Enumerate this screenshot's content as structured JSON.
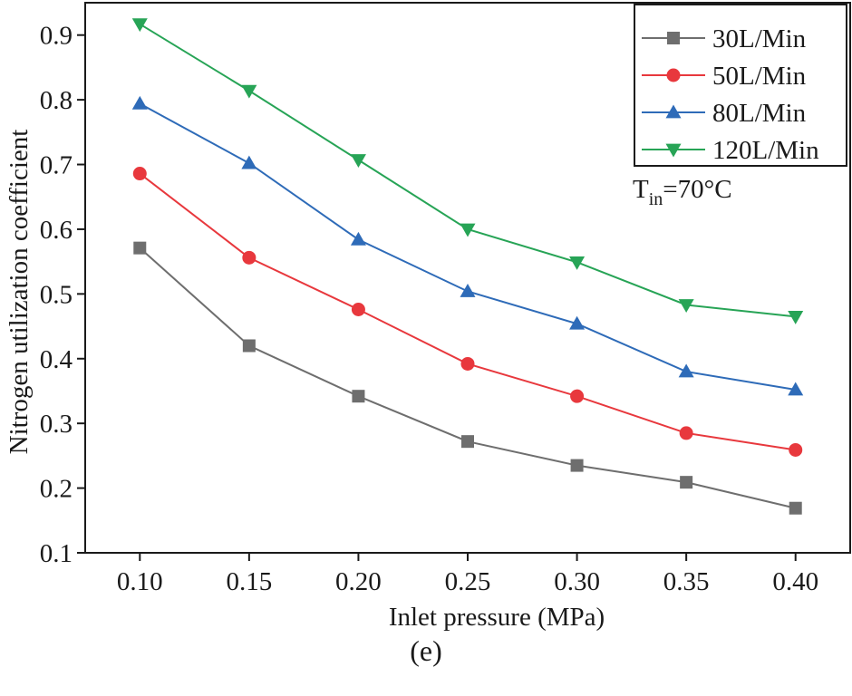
{
  "chart_data": {
    "type": "line",
    "x": [
      0.1,
      0.15,
      0.2,
      0.25,
      0.3,
      0.35,
      0.4
    ],
    "x_tick_labels": [
      "0.10",
      "0.15",
      "0.20",
      "0.25",
      "0.30",
      "0.35",
      "0.40"
    ],
    "y_ticks": [
      0.1,
      0.2,
      0.3,
      0.4,
      0.5,
      0.6,
      0.7,
      0.8,
      0.9
    ],
    "y_tick_labels": [
      "0.1",
      "0.2",
      "0.3",
      "0.4",
      "0.5",
      "0.6",
      "0.7",
      "0.8",
      "0.9"
    ],
    "xlim": [
      0.075,
      0.425
    ],
    "ylim": [
      0.1,
      0.95
    ],
    "xlabel": "Inlet pressure (MPa)",
    "ylabel": "Nitrogen utilization coefficient",
    "grid": false,
    "legend_position": "top-right",
    "series": [
      {
        "name": "30L/Min",
        "color": "#6e6e6e",
        "marker": "square",
        "values": [
          0.571,
          0.42,
          0.342,
          0.272,
          0.235,
          0.209,
          0.169
        ]
      },
      {
        "name": "50L/Min",
        "color": "#e8383d",
        "marker": "circle",
        "values": [
          0.686,
          0.556,
          0.476,
          0.392,
          0.342,
          0.285,
          0.259
        ]
      },
      {
        "name": "80L/Min",
        "color": "#2e6bb8",
        "marker": "triangle-up",
        "values": [
          0.794,
          0.702,
          0.584,
          0.504,
          0.454,
          0.38,
          0.352
        ]
      },
      {
        "name": "120L/Min",
        "color": "#27a456",
        "marker": "triangle-down",
        "values": [
          0.917,
          0.814,
          0.707,
          0.6,
          0.549,
          0.483,
          0.465
        ]
      }
    ],
    "annotation": {
      "base": "T",
      "subscript": "in",
      "rest": "=70°C"
    }
  },
  "caption": "(e)"
}
